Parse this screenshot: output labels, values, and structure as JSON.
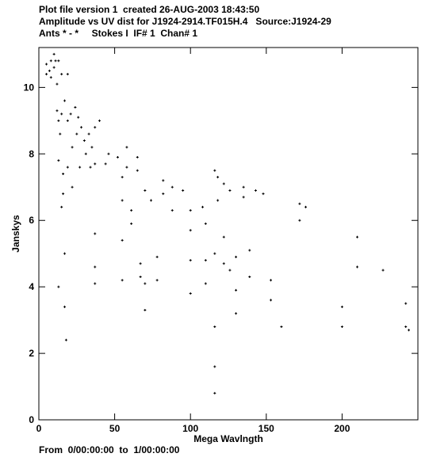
{
  "header": [
    "Plot file version 1  created 26-AUG-2003 18:43:50",
    "Amplitude vs UV dist for J1924-2914.TF015H.4   Source:J1924-29",
    "Ants * - *     Stokes I  IF# 1  Chan# 1"
  ],
  "footer": "From  0/00:00:00  to  1/00:00:00",
  "chart_data": {
    "type": "scatter",
    "xlabel": "Mega Wavlngth",
    "ylabel": "Janskys",
    "color": "#000000",
    "xlim": [
      0,
      250
    ],
    "ylim": [
      0,
      11.2
    ],
    "xticks": [
      0,
      50,
      100,
      150,
      200
    ],
    "yticks": [
      0,
      2,
      4,
      6,
      8,
      10
    ],
    "x": [
      5,
      5,
      7,
      8,
      8,
      10,
      10,
      11,
      12,
      12,
      13,
      13,
      13,
      13,
      14,
      15,
      15,
      15,
      16,
      16,
      17,
      17,
      17,
      18,
      19,
      19,
      19,
      21,
      22,
      22,
      24,
      25,
      26,
      27,
      28,
      30,
      31,
      33,
      34,
      35,
      37,
      37,
      37,
      37,
      37,
      40,
      44,
      46,
      52,
      55,
      55,
      55,
      55,
      58,
      58,
      61,
      61,
      65,
      65,
      67,
      67,
      70,
      70,
      70,
      74,
      78,
      78,
      82,
      82,
      88,
      88,
      95,
      100,
      100,
      100,
      100,
      108,
      110,
      110,
      110,
      116,
      116,
      116,
      116,
      116,
      118,
      118,
      122,
      122,
      122,
      126,
      126,
      130,
      130,
      130,
      135,
      135,
      139,
      139,
      143,
      148,
      153,
      153,
      160,
      172,
      172,
      176,
      200,
      200,
      210,
      210,
      227,
      242,
      242,
      244
    ],
    "values": [
      10.4,
      10.7,
      10.5,
      10.8,
      10.3,
      11.0,
      10.6,
      10.8,
      10.1,
      9.3,
      10.8,
      9.0,
      7.8,
      4.0,
      8.6,
      10.4,
      9.2,
      6.4,
      7.4,
      6.8,
      9.6,
      5.0,
      3.4,
      2.4,
      10.4,
      9.0,
      7.6,
      9.2,
      8.2,
      7.0,
      9.4,
      8.6,
      9.1,
      7.6,
      8.8,
      8.4,
      8.0,
      8.6,
      7.6,
      8.2,
      8.8,
      7.7,
      5.6,
      4.6,
      4.1,
      9.0,
      7.7,
      8.0,
      7.9,
      7.3,
      6.6,
      5.4,
      4.2,
      8.2,
      7.6,
      6.3,
      5.9,
      7.9,
      7.5,
      4.7,
      4.3,
      6.9,
      4.1,
      3.3,
      6.6,
      4.9,
      4.2,
      7.2,
      6.8,
      7.0,
      6.3,
      6.9,
      6.3,
      5.7,
      4.8,
      3.8,
      6.4,
      5.9,
      4.8,
      4.1,
      7.5,
      5.0,
      2.8,
      1.6,
      0.8,
      7.3,
      6.6,
      7.1,
      5.5,
      4.7,
      4.5,
      6.9,
      4.9,
      3.9,
      3.2,
      7.0,
      6.7,
      5.1,
      4.3,
      6.9,
      6.8,
      4.2,
      3.6,
      2.8,
      6.5,
      6.0,
      6.4,
      3.4,
      2.8,
      5.5,
      4.6,
      4.5,
      3.5,
      2.8,
      2.7
    ]
  }
}
